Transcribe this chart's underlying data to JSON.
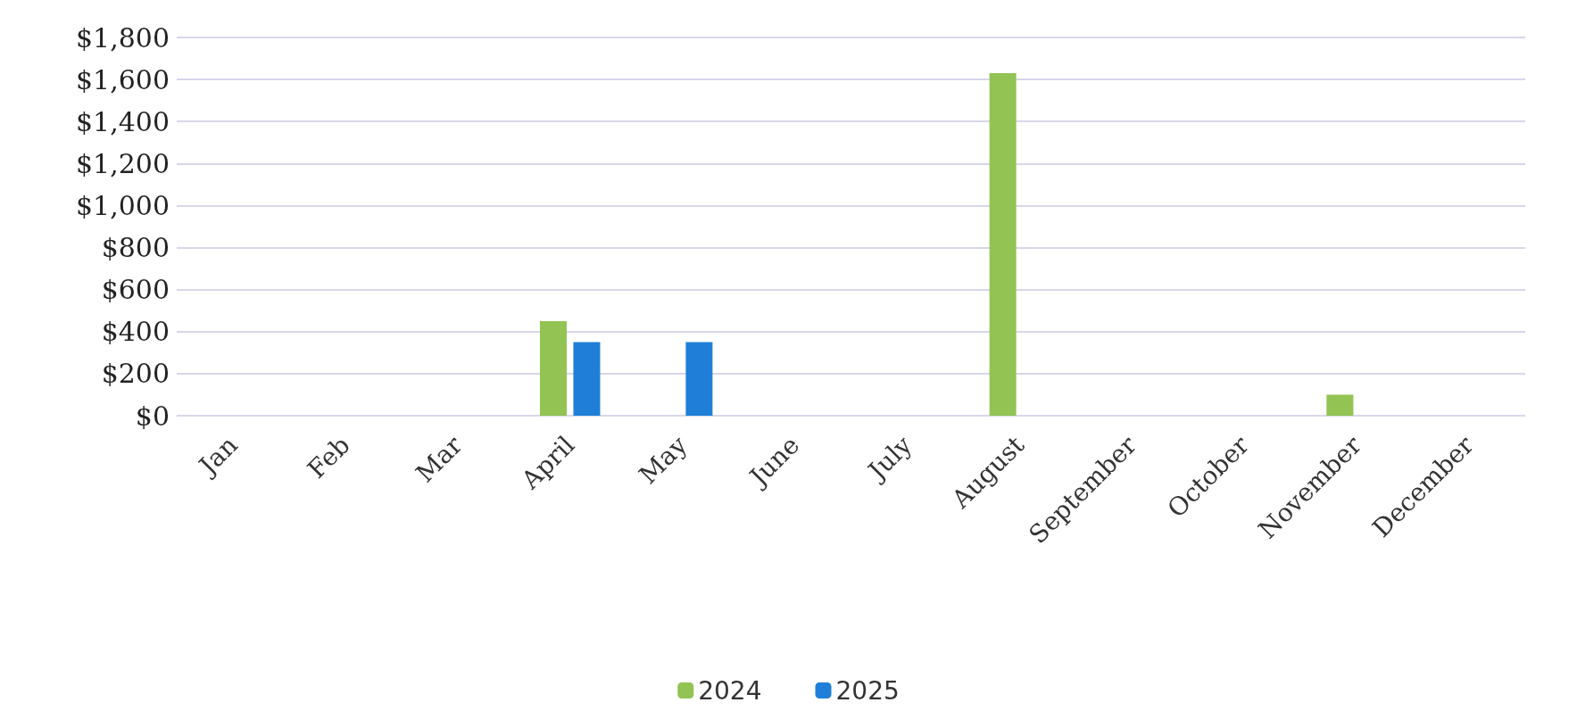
{
  "chart_data": {
    "type": "bar",
    "categories": [
      "Jan",
      "Feb",
      "Mar",
      "April",
      "May",
      "June",
      "July",
      "August",
      "September",
      "October",
      "November",
      "December"
    ],
    "series": [
      {
        "name": "2024",
        "color": "#92c353",
        "values": [
          0,
          0,
          0,
          450,
          0,
          0,
          0,
          1630,
          0,
          0,
          100,
          0
        ]
      },
      {
        "name": "2025",
        "color": "#1f7fd8",
        "values": [
          0,
          0,
          0,
          350,
          350,
          0,
          0,
          0,
          0,
          0,
          0,
          0
        ]
      }
    ],
    "ylim": [
      0,
      1800
    ],
    "yticks": [
      {
        "value": 0,
        "label": "$0"
      },
      {
        "value": 200,
        "label": "$200"
      },
      {
        "value": 400,
        "label": "$400"
      },
      {
        "value": 600,
        "label": "$600"
      },
      {
        "value": 800,
        "label": "$800"
      },
      {
        "value": 1000,
        "label": "$1,000"
      },
      {
        "value": 1200,
        "label": "$1,200"
      },
      {
        "value": 1400,
        "label": "$1,400"
      },
      {
        "value": 1600,
        "label": "$1,600"
      },
      {
        "value": 1800,
        "label": "$1,800"
      }
    ],
    "grid": "y",
    "legend": "bottom"
  }
}
